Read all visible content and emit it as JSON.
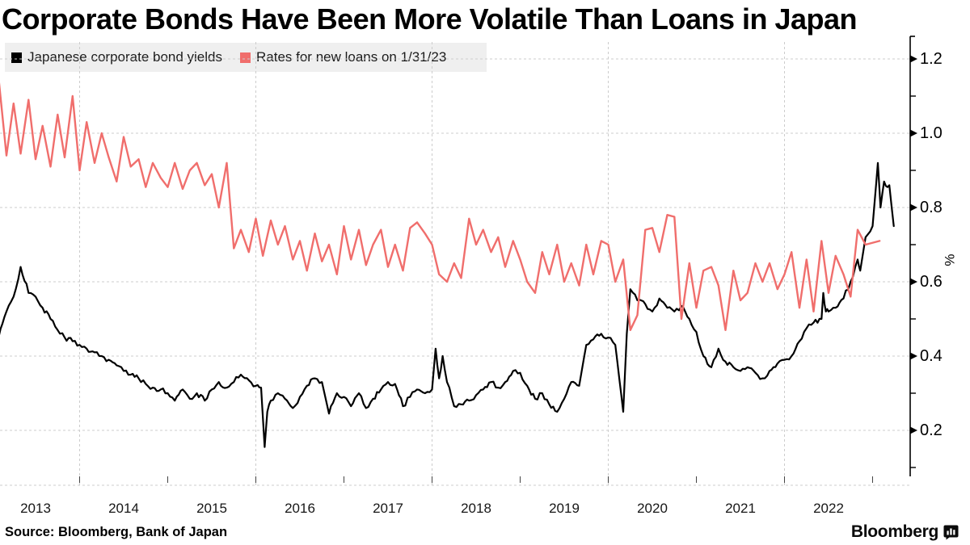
{
  "title": "Corporate Bonds Have Been More Volatile Than Loans in Japan",
  "source": "Source: Bloomberg, Bank of Japan",
  "branding": {
    "wordmark": "Bloomberg",
    "logo_icon": "bloomberg-bars-bubble-icon"
  },
  "colors": {
    "background": "#ffffff",
    "legend_background": "#efefef",
    "gridline": "#cccccc",
    "axis": "#000000",
    "bond_series": "#000000",
    "loan_series": "#F06E6C",
    "x_tick": "#444444"
  },
  "legend": [
    {
      "label": "Japanese corporate bond yields",
      "color": "#000000",
      "swatch": "black-square"
    },
    {
      "label": "Rates for new loans on 1/31/23",
      "color": "#F06E6C",
      "swatch": "red-square"
    }
  ],
  "chart_data": {
    "type": "line",
    "title": "Corporate Bonds Have Been More Volatile Than Loans in Japan",
    "xlabel": "",
    "ylabel": "%",
    "x_range_years": [
      2013,
      2023.25
    ],
    "ylim": [
      0.08,
      1.26
    ],
    "grid": {
      "h_values": [
        0.2,
        0.4,
        0.6,
        0.8,
        1.0,
        1.2
      ],
      "v_years": [
        2014,
        2016,
        2018,
        2020,
        2022
      ],
      "style": "dashed"
    },
    "y_axis": {
      "side": "right",
      "unit": "%",
      "major_ticks": [
        {
          "v": 1.2,
          "label": "1.2"
        },
        {
          "v": 1.0,
          "label": "1.0"
        },
        {
          "v": 0.8,
          "label": "0.8"
        },
        {
          "v": 0.6,
          "label": "0.6"
        },
        {
          "v": 0.4,
          "label": "0.4"
        },
        {
          "v": 0.2,
          "label": "0.2"
        }
      ],
      "minor_ticks": [
        0.1,
        0.3,
        0.5,
        0.7,
        0.9,
        1.1
      ]
    },
    "x_axis": {
      "year_labels": [
        2013,
        2014,
        2015,
        2016,
        2017,
        2018,
        2019,
        2020,
        2021,
        2022
      ],
      "tick_year_starts": [
        2014,
        2015,
        2016,
        2017,
        2018,
        2019,
        2020,
        2021,
        2022,
        2023
      ]
    },
    "series": [
      {
        "name": "Japanese corporate bond yields",
        "color": "#000000",
        "width": 2.2,
        "style": "noisy",
        "points": [
          [
            2013.0,
            0.48
          ],
          [
            2013.08,
            0.45
          ],
          [
            2013.17,
            0.52
          ],
          [
            2013.25,
            0.56
          ],
          [
            2013.33,
            0.64
          ],
          [
            2013.42,
            0.57
          ],
          [
            2013.5,
            0.56
          ],
          [
            2013.58,
            0.53
          ],
          [
            2013.67,
            0.5
          ],
          [
            2013.75,
            0.47
          ],
          [
            2013.83,
            0.45
          ],
          [
            2013.92,
            0.44
          ],
          [
            2014.0,
            0.43
          ],
          [
            2014.08,
            0.42
          ],
          [
            2014.17,
            0.41
          ],
          [
            2014.25,
            0.4
          ],
          [
            2014.33,
            0.39
          ],
          [
            2014.42,
            0.375
          ],
          [
            2014.5,
            0.36
          ],
          [
            2014.58,
            0.35
          ],
          [
            2014.67,
            0.34
          ],
          [
            2014.75,
            0.325
          ],
          [
            2014.83,
            0.315
          ],
          [
            2014.92,
            0.31
          ],
          [
            2015.0,
            0.3
          ],
          [
            2015.08,
            0.28
          ],
          [
            2015.17,
            0.31
          ],
          [
            2015.25,
            0.285
          ],
          [
            2015.33,
            0.3
          ],
          [
            2015.42,
            0.28
          ],
          [
            2015.5,
            0.31
          ],
          [
            2015.58,
            0.33
          ],
          [
            2015.67,
            0.315
          ],
          [
            2015.75,
            0.33
          ],
          [
            2015.83,
            0.35
          ],
          [
            2015.92,
            0.335
          ],
          [
            2016.0,
            0.32
          ],
          [
            2016.06,
            0.315
          ],
          [
            2016.1,
            0.155
          ],
          [
            2016.13,
            0.25
          ],
          [
            2016.17,
            0.28
          ],
          [
            2016.25,
            0.3
          ],
          [
            2016.33,
            0.285
          ],
          [
            2016.42,
            0.26
          ],
          [
            2016.5,
            0.29
          ],
          [
            2016.58,
            0.32
          ],
          [
            2016.67,
            0.34
          ],
          [
            2016.75,
            0.33
          ],
          [
            2016.83,
            0.245
          ],
          [
            2016.92,
            0.3
          ],
          [
            2017.0,
            0.29
          ],
          [
            2017.08,
            0.265
          ],
          [
            2017.17,
            0.3
          ],
          [
            2017.25,
            0.26
          ],
          [
            2017.33,
            0.285
          ],
          [
            2017.42,
            0.31
          ],
          [
            2017.5,
            0.33
          ],
          [
            2017.58,
            0.325
          ],
          [
            2017.67,
            0.265
          ],
          [
            2017.75,
            0.29
          ],
          [
            2017.83,
            0.31
          ],
          [
            2017.92,
            0.3
          ],
          [
            2018.0,
            0.31
          ],
          [
            2018.04,
            0.42
          ],
          [
            2018.08,
            0.34
          ],
          [
            2018.12,
            0.4
          ],
          [
            2018.17,
            0.33
          ],
          [
            2018.25,
            0.265
          ],
          [
            2018.33,
            0.27
          ],
          [
            2018.42,
            0.28
          ],
          [
            2018.5,
            0.295
          ],
          [
            2018.58,
            0.31
          ],
          [
            2018.67,
            0.33
          ],
          [
            2018.75,
            0.315
          ],
          [
            2018.83,
            0.33
          ],
          [
            2018.92,
            0.36
          ],
          [
            2019.0,
            0.355
          ],
          [
            2019.08,
            0.32
          ],
          [
            2019.17,
            0.285
          ],
          [
            2019.25,
            0.3
          ],
          [
            2019.33,
            0.27
          ],
          [
            2019.42,
            0.25
          ],
          [
            2019.5,
            0.285
          ],
          [
            2019.58,
            0.33
          ],
          [
            2019.67,
            0.32
          ],
          [
            2019.75,
            0.43
          ],
          [
            2019.83,
            0.445
          ],
          [
            2019.92,
            0.46
          ],
          [
            2020.0,
            0.45
          ],
          [
            2020.08,
            0.43
          ],
          [
            2020.17,
            0.25
          ],
          [
            2020.21,
            0.46
          ],
          [
            2020.25,
            0.58
          ],
          [
            2020.33,
            0.55
          ],
          [
            2020.42,
            0.54
          ],
          [
            2020.5,
            0.52
          ],
          [
            2020.58,
            0.555
          ],
          [
            2020.67,
            0.53
          ],
          [
            2020.75,
            0.52
          ],
          [
            2020.83,
            0.535
          ],
          [
            2020.92,
            0.5
          ],
          [
            2021.0,
            0.465
          ],
          [
            2021.08,
            0.4
          ],
          [
            2021.17,
            0.37
          ],
          [
            2021.25,
            0.42
          ],
          [
            2021.33,
            0.385
          ],
          [
            2021.42,
            0.37
          ],
          [
            2021.5,
            0.36
          ],
          [
            2021.58,
            0.37
          ],
          [
            2021.67,
            0.355
          ],
          [
            2021.75,
            0.34
          ],
          [
            2021.83,
            0.36
          ],
          [
            2021.92,
            0.38
          ],
          [
            2022.0,
            0.39
          ],
          [
            2022.08,
            0.4
          ],
          [
            2022.17,
            0.44
          ],
          [
            2022.25,
            0.475
          ],
          [
            2022.33,
            0.49
          ],
          [
            2022.42,
            0.5
          ],
          [
            2022.44,
            0.57
          ],
          [
            2022.47,
            0.52
          ],
          [
            2022.5,
            0.52
          ],
          [
            2022.58,
            0.53
          ],
          [
            2022.67,
            0.555
          ],
          [
            2022.75,
            0.6
          ],
          [
            2022.83,
            0.66
          ],
          [
            2022.86,
            0.63
          ],
          [
            2022.92,
            0.72
          ],
          [
            2023.0,
            0.75
          ],
          [
            2023.06,
            0.92
          ],
          [
            2023.09,
            0.8
          ],
          [
            2023.13,
            0.87
          ],
          [
            2023.17,
            0.855
          ],
          [
            2023.19,
            0.86
          ],
          [
            2023.24,
            0.75
          ]
        ]
      },
      {
        "name": "Rates for new loans on 1/31/23",
        "color": "#F06E6C",
        "width": 2.4,
        "style": "linear",
        "points": [
          [
            2013.0,
            0.97
          ],
          [
            2013.08,
            1.15
          ],
          [
            2013.17,
            0.94
          ],
          [
            2013.25,
            1.08
          ],
          [
            2013.33,
            0.945
          ],
          [
            2013.42,
            1.09
          ],
          [
            2013.5,
            0.93
          ],
          [
            2013.58,
            1.02
          ],
          [
            2013.67,
            0.91
          ],
          [
            2013.75,
            1.05
          ],
          [
            2013.83,
            0.935
          ],
          [
            2013.92,
            1.1
          ],
          [
            2014.0,
            0.9
          ],
          [
            2014.08,
            1.03
          ],
          [
            2014.17,
            0.92
          ],
          [
            2014.25,
            1.0
          ],
          [
            2014.33,
            0.935
          ],
          [
            2014.42,
            0.87
          ],
          [
            2014.5,
            0.99
          ],
          [
            2014.58,
            0.91
          ],
          [
            2014.67,
            0.93
          ],
          [
            2014.75,
            0.855
          ],
          [
            2014.83,
            0.92
          ],
          [
            2014.92,
            0.88
          ],
          [
            2015.0,
            0.855
          ],
          [
            2015.08,
            0.92
          ],
          [
            2015.17,
            0.85
          ],
          [
            2015.25,
            0.9
          ],
          [
            2015.33,
            0.92
          ],
          [
            2015.42,
            0.86
          ],
          [
            2015.5,
            0.89
          ],
          [
            2015.58,
            0.8
          ],
          [
            2015.67,
            0.92
          ],
          [
            2015.75,
            0.69
          ],
          [
            2015.83,
            0.74
          ],
          [
            2015.92,
            0.68
          ],
          [
            2016.0,
            0.77
          ],
          [
            2016.08,
            0.67
          ],
          [
            2016.17,
            0.765
          ],
          [
            2016.25,
            0.7
          ],
          [
            2016.33,
            0.75
          ],
          [
            2016.42,
            0.66
          ],
          [
            2016.5,
            0.71
          ],
          [
            2016.58,
            0.63
          ],
          [
            2016.67,
            0.73
          ],
          [
            2016.75,
            0.655
          ],
          [
            2016.83,
            0.7
          ],
          [
            2016.92,
            0.62
          ],
          [
            2017.0,
            0.75
          ],
          [
            2017.08,
            0.66
          ],
          [
            2017.17,
            0.74
          ],
          [
            2017.25,
            0.645
          ],
          [
            2017.33,
            0.7
          ],
          [
            2017.42,
            0.74
          ],
          [
            2017.5,
            0.64
          ],
          [
            2017.58,
            0.7
          ],
          [
            2017.67,
            0.63
          ],
          [
            2017.75,
            0.745
          ],
          [
            2017.83,
            0.76
          ],
          [
            2017.92,
            0.73
          ],
          [
            2018.0,
            0.7
          ],
          [
            2018.08,
            0.62
          ],
          [
            2018.17,
            0.6
          ],
          [
            2018.25,
            0.65
          ],
          [
            2018.33,
            0.61
          ],
          [
            2018.42,
            0.77
          ],
          [
            2018.5,
            0.7
          ],
          [
            2018.58,
            0.74
          ],
          [
            2018.67,
            0.68
          ],
          [
            2018.75,
            0.72
          ],
          [
            2018.83,
            0.64
          ],
          [
            2018.92,
            0.71
          ],
          [
            2019.0,
            0.66
          ],
          [
            2019.08,
            0.6
          ],
          [
            2019.17,
            0.57
          ],
          [
            2019.25,
            0.68
          ],
          [
            2019.33,
            0.62
          ],
          [
            2019.42,
            0.7
          ],
          [
            2019.5,
            0.6
          ],
          [
            2019.58,
            0.65
          ],
          [
            2019.67,
            0.59
          ],
          [
            2019.75,
            0.7
          ],
          [
            2019.83,
            0.62
          ],
          [
            2019.92,
            0.71
          ],
          [
            2020.0,
            0.7
          ],
          [
            2020.08,
            0.6
          ],
          [
            2020.17,
            0.66
          ],
          [
            2020.25,
            0.47
          ],
          [
            2020.33,
            0.51
          ],
          [
            2020.42,
            0.74
          ],
          [
            2020.5,
            0.745
          ],
          [
            2020.58,
            0.68
          ],
          [
            2020.67,
            0.78
          ],
          [
            2020.75,
            0.775
          ],
          [
            2020.83,
            0.5
          ],
          [
            2020.92,
            0.65
          ],
          [
            2021.0,
            0.53
          ],
          [
            2021.08,
            0.63
          ],
          [
            2021.17,
            0.64
          ],
          [
            2021.25,
            0.59
          ],
          [
            2021.33,
            0.47
          ],
          [
            2021.42,
            0.63
          ],
          [
            2021.5,
            0.55
          ],
          [
            2021.58,
            0.57
          ],
          [
            2021.67,
            0.65
          ],
          [
            2021.75,
            0.6
          ],
          [
            2021.83,
            0.65
          ],
          [
            2021.92,
            0.58
          ],
          [
            2022.0,
            0.62
          ],
          [
            2022.08,
            0.68
          ],
          [
            2022.17,
            0.53
          ],
          [
            2022.25,
            0.66
          ],
          [
            2022.33,
            0.52
          ],
          [
            2022.42,
            0.71
          ],
          [
            2022.5,
            0.57
          ],
          [
            2022.58,
            0.67
          ],
          [
            2022.67,
            0.62
          ],
          [
            2022.75,
            0.56
          ],
          [
            2022.83,
            0.74
          ],
          [
            2022.92,
            0.7
          ],
          [
            2023.08,
            0.71
          ]
        ]
      }
    ]
  }
}
